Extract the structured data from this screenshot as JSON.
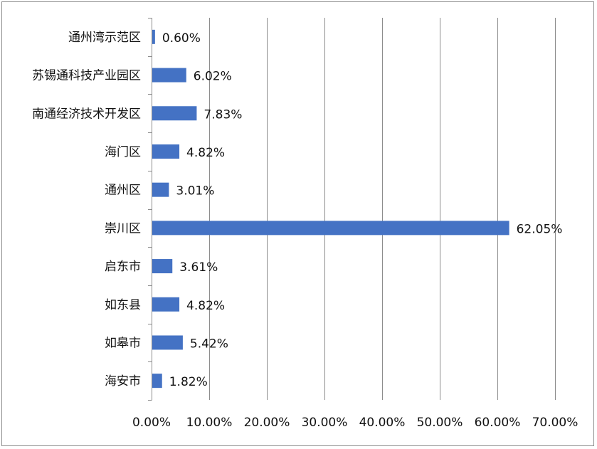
{
  "chart_data": {
    "type": "bar",
    "orientation": "horizontal",
    "categories": [
      "通州湾示范区",
      "苏锡通科技产业园区",
      "南通经济技术开发区",
      "海门区",
      "通州区",
      "崇川区",
      "启东市",
      "如东县",
      "如皋市",
      "海安市"
    ],
    "values": [
      0.6,
      6.02,
      7.83,
      4.82,
      3.01,
      62.05,
      3.61,
      4.82,
      5.42,
      1.82
    ],
    "value_labels": [
      "0.60%",
      "6.02%",
      "7.83%",
      "4.82%",
      "3.01%",
      "62.05%",
      "3.61%",
      "4.82%",
      "5.42%",
      "1.82%"
    ],
    "x_ticks": [
      "0.00%",
      "10.00%",
      "20.00%",
      "30.00%",
      "40.00%",
      "50.00%",
      "60.00%",
      "70.00%"
    ],
    "xlim": [
      0,
      70
    ],
    "unit": "%",
    "title": "",
    "xlabel": "",
    "ylabel": "",
    "grid": "vertical",
    "legend": "none",
    "bar_color": "#4472c4",
    "grid_color": "#8c8c8c"
  }
}
